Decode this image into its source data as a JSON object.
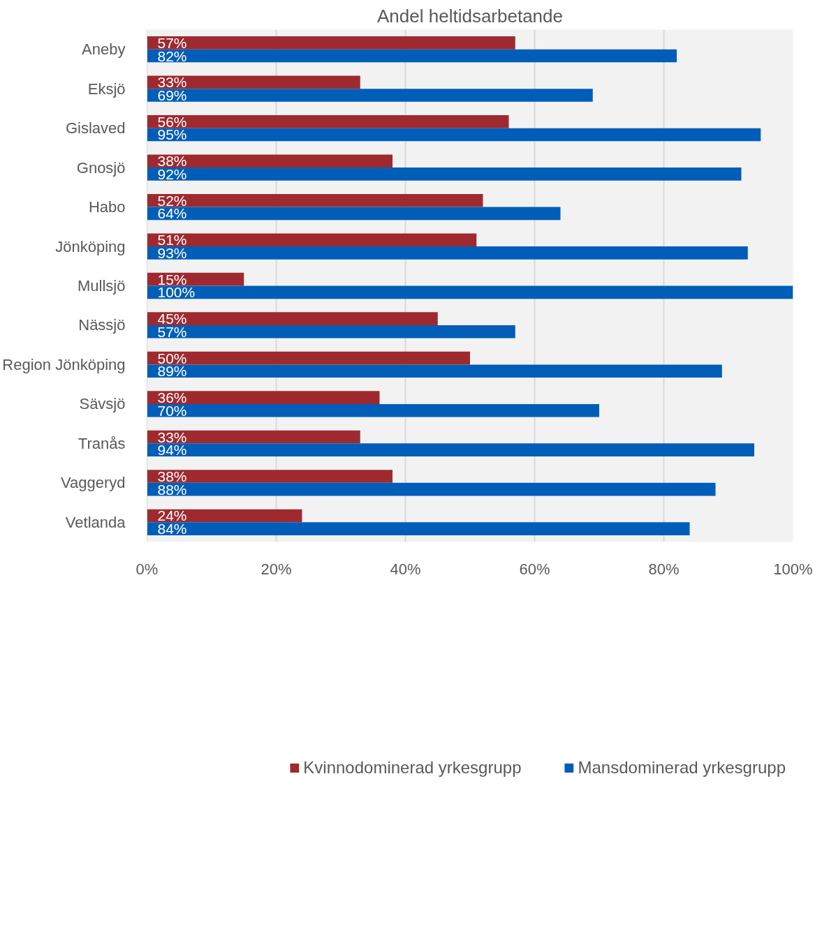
{
  "chart_data": {
    "type": "bar",
    "orientation": "horizontal",
    "title": "Andel heltidsarbetande",
    "categories": [
      "Aneby",
      "Eksjö",
      "Gislaved",
      "Gnosjö",
      "Habo",
      "Jönköping",
      "Mullsjö",
      "Nässjö",
      "Region Jönköping",
      "Sävsjö",
      "Tranås",
      "Vaggeryd",
      "Vetlanda"
    ],
    "series": [
      {
        "name": "Kvinnodominerad yrkesgrupp",
        "color": "#9e2a2f",
        "values": [
          57,
          33,
          56,
          38,
          52,
          51,
          15,
          45,
          50,
          36,
          33,
          38,
          24
        ],
        "value_labels": [
          "57%",
          "33%",
          "56%",
          "38%",
          "52%",
          "51%",
          "15%",
          "45%",
          "50%",
          "36%",
          "33%",
          "38%",
          "24%"
        ]
      },
      {
        "name": "Mansdominerad yrkesgrupp",
        "color": "#005eb8",
        "values": [
          82,
          69,
          95,
          92,
          64,
          93,
          100,
          57,
          89,
          70,
          94,
          88,
          84
        ],
        "value_labels": [
          "82%",
          "69%",
          "95%",
          "92%",
          "64%",
          "93%",
          "100%",
          "57%",
          "89%",
          "70%",
          "94%",
          "88%",
          "84%"
        ]
      }
    ],
    "xlim": [
      0,
      100
    ],
    "xticks": [
      {
        "value": 0,
        "label": "0%"
      },
      {
        "value": 20,
        "label": "20%"
      },
      {
        "value": 40,
        "label": "40%"
      },
      {
        "value": 60,
        "label": "60%"
      },
      {
        "value": 80,
        "label": "80%"
      },
      {
        "value": 100,
        "label": "100%"
      }
    ],
    "grid": "x",
    "legend": "bottom"
  }
}
